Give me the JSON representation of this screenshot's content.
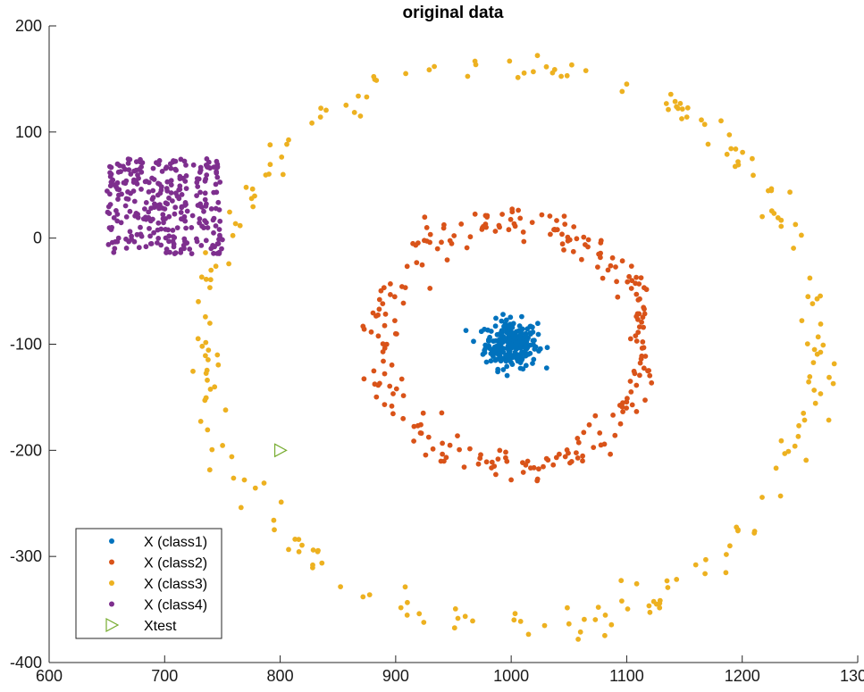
{
  "chart_data": {
    "type": "scatter",
    "title": "original data",
    "xlabel": "",
    "ylabel": "",
    "xlim": [
      600,
      1300
    ],
    "ylim": [
      -400,
      200
    ],
    "xticks": [
      600,
      700,
      800,
      900,
      1000,
      1100,
      1200,
      1300
    ],
    "yticks": [
      -400,
      -300,
      -200,
      -100,
      0,
      100,
      200
    ],
    "grid": false,
    "legend_position": "bottom-left",
    "series": [
      {
        "name": "X (class1)",
        "color": "#0072BD",
        "marker": "dot",
        "cluster": {
          "kind": "blob",
          "center": [
            1000,
            -100
          ],
          "radius": 25,
          "count": 260
        }
      },
      {
        "name": "X (class2)",
        "color": "#D95319",
        "marker": "dot",
        "cluster": {
          "kind": "ring",
          "center": [
            1000,
            -100
          ],
          "radius": 115,
          "spread": 8,
          "count": 260
        }
      },
      {
        "name": "X (class3)",
        "color": "#EDB120",
        "marker": "dot",
        "cluster": {
          "kind": "ring",
          "center": [
            1000,
            -100
          ],
          "radius": 265,
          "spread": 8,
          "count": 230
        }
      },
      {
        "name": "X (class4)",
        "color": "#7E2F8E",
        "marker": "dot",
        "cluster": {
          "kind": "rect",
          "x_range": [
            650,
            750
          ],
          "y_range": [
            -15,
            75
          ],
          "count": 300
        }
      },
      {
        "name": "Xtest",
        "color": "#77AC30",
        "marker": "triangle-right",
        "points": [
          [
            800,
            -200
          ]
        ]
      }
    ]
  }
}
